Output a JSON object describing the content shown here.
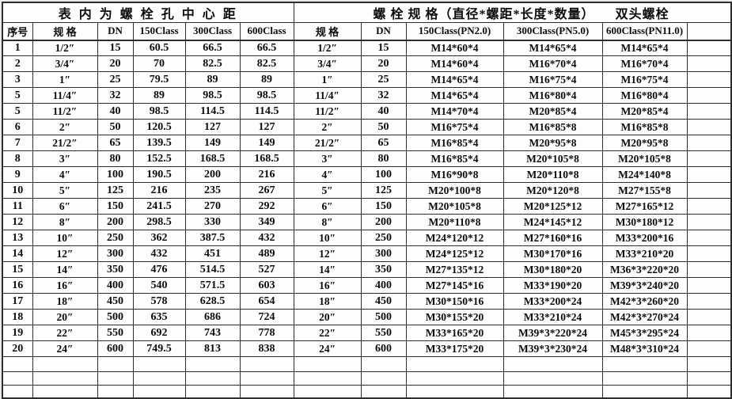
{
  "table": {
    "title_left": "表 内 为 螺 栓 孔 中 心 距",
    "title_right": "螺 栓 规 格（直径*螺距*长度*数量）",
    "title_right2": "双头螺栓",
    "headers": [
      "序号",
      "规 格",
      "DN",
      "150Class",
      "300Class",
      "600Class",
      "规 格",
      "DN",
      "150Class(PN2.0)",
      "300Class(PN5.0)",
      "600Class(PN11.0)",
      ""
    ],
    "rows": [
      {
        "no": "1",
        "spec": "1/2″",
        "dn": "15",
        "c150": "60.5",
        "c300": "66.5",
        "c600": "66.5",
        "spec2": "1/2″",
        "dn2": "15",
        "b150": "M14*60*4",
        "b300": "M14*65*4",
        "b600": "M14*65*4"
      },
      {
        "no": "2",
        "spec": "3/4″",
        "dn": "20",
        "c150": "70",
        "c300": "82.5",
        "c600": "82.5",
        "spec2": "3/4″",
        "dn2": "20",
        "b150": "M14*60*4",
        "b300": "M16*70*4",
        "b600": "M16*70*4"
      },
      {
        "no": "3",
        "spec": "1″",
        "dn": "25",
        "c150": "79.5",
        "c300": "89",
        "c600": "89",
        "spec2": "1″",
        "dn2": "25",
        "b150": "M14*65*4",
        "b300": "M16*75*4",
        "b600": "M16*75*4"
      },
      {
        "no": "5",
        "spec": "11/4″",
        "dn": "32",
        "c150": "89",
        "c300": "98.5",
        "c600": "98.5",
        "spec2": "11/4″",
        "dn2": "32",
        "b150": "M14*65*4",
        "b300": "M16*80*4",
        "b600": "M16*80*4"
      },
      {
        "no": "5",
        "spec": "11/2″",
        "dn": "40",
        "c150": "98.5",
        "c300": "114.5",
        "c600": "114.5",
        "spec2": "11/2″",
        "dn2": "40",
        "b150": "M14*70*4",
        "b300": "M20*85*4",
        "b600": "M20*85*4"
      },
      {
        "no": "6",
        "spec": "2″",
        "dn": "50",
        "c150": "120.5",
        "c300": "127",
        "c600": "127",
        "spec2": "2″",
        "dn2": "50",
        "b150": "M16*75*4",
        "b300": "M16*85*8",
        "b600": "M16*85*8"
      },
      {
        "no": "7",
        "spec": "21/2″",
        "dn": "65",
        "c150": "139.5",
        "c300": "149",
        "c600": "149",
        "spec2": "21/2″",
        "dn2": "65",
        "b150": "M16*85*4",
        "b300": "M20*95*8",
        "b600": "M20*95*8"
      },
      {
        "no": "8",
        "spec": "3″",
        "dn": "80",
        "c150": "152.5",
        "c300": "168.5",
        "c600": "168.5",
        "spec2": "3″",
        "dn2": "80",
        "b150": "M16*85*4",
        "b300": "M20*105*8",
        "b600": "M20*105*8"
      },
      {
        "no": "9",
        "spec": "4″",
        "dn": "100",
        "c150": "190.5",
        "c300": "200",
        "c600": "216",
        "spec2": "4″",
        "dn2": "100",
        "b150": "M16*90*8",
        "b300": "M20*110*8",
        "b600": "M24*140*8"
      },
      {
        "no": "10",
        "spec": "5″",
        "dn": "125",
        "c150": "216",
        "c300": "235",
        "c600": "267",
        "spec2": "5″",
        "dn2": "125",
        "b150": "M20*100*8",
        "b300": "M20*120*8",
        "b600": "M27*155*8"
      },
      {
        "no": "11",
        "spec": "6″",
        "dn": "150",
        "c150": "241.5",
        "c300": "270",
        "c600": "292",
        "spec2": "6″",
        "dn2": "150",
        "b150": "M20*105*8",
        "b300": "M20*125*12",
        "b600": "M27*165*12"
      },
      {
        "no": "12",
        "spec": "8″",
        "dn": "200",
        "c150": "298.5",
        "c300": "330",
        "c600": "349",
        "spec2": "8″",
        "dn2": "200",
        "b150": "M20*110*8",
        "b300": "M24*145*12",
        "b600": "M30*180*12"
      },
      {
        "no": "13",
        "spec": "10″",
        "dn": "250",
        "c150": "362",
        "c300": "387.5",
        "c600": "432",
        "spec2": "10″",
        "dn2": "250",
        "b150": "M24*120*12",
        "b300": "M27*160*16",
        "b600": "M33*200*16"
      },
      {
        "no": "14",
        "spec": "12″",
        "dn": "300",
        "c150": "432",
        "c300": "451",
        "c600": "489",
        "spec2": "12″",
        "dn2": "300",
        "b150": "M24*125*12",
        "b300": "M30*170*16",
        "b600": "M33*210*20"
      },
      {
        "no": "15",
        "spec": "14″",
        "dn": "350",
        "c150": "476",
        "c300": "514.5",
        "c600": "527",
        "spec2": "14″",
        "dn2": "350",
        "b150": "M27*135*12",
        "b300": "M30*180*20",
        "b600": "M36*3*220*20"
      },
      {
        "no": "16",
        "spec": "16″",
        "dn": "400",
        "c150": "540",
        "c300": "571.5",
        "c600": "603",
        "spec2": "16″",
        "dn2": "400",
        "b150": "M27*145*16",
        "b300": "M33*190*20",
        "b600": "M39*3*240*20"
      },
      {
        "no": "17",
        "spec": "18″",
        "dn": "450",
        "c150": "578",
        "c300": "628.5",
        "c600": "654",
        "spec2": "18″",
        "dn2": "450",
        "b150": "M30*150*16",
        "b300": "M33*200*24",
        "b600": "M42*3*260*20"
      },
      {
        "no": "18",
        "spec": "20″",
        "dn": "500",
        "c150": "635",
        "c300": "686",
        "c600": "724",
        "spec2": "20″",
        "dn2": "500",
        "b150": "M30*155*20",
        "b300": "M33*210*24",
        "b600": "M42*3*270*24"
      },
      {
        "no": "19",
        "spec": "22″",
        "dn": "550",
        "c150": "692",
        "c300": "743",
        "c600": "778",
        "spec2": "22″",
        "dn2": "550",
        "b150": "M33*165*20",
        "b300": "M39*3*220*24",
        "b600": "M45*3*295*24"
      },
      {
        "no": "20",
        "spec": "24″",
        "dn": "600",
        "c150": "749.5",
        "c300": "813",
        "c600": "838",
        "spec2": "24″",
        "dn2": "600",
        "b150": "M33*175*20",
        "b300": "M39*3*230*24",
        "b600": "M48*3*310*24"
      }
    ],
    "empty_rows": 3,
    "colors": {
      "grid": "#2d2d2d",
      "text": "#0c0c0c",
      "background": "#fdfdfd"
    }
  }
}
